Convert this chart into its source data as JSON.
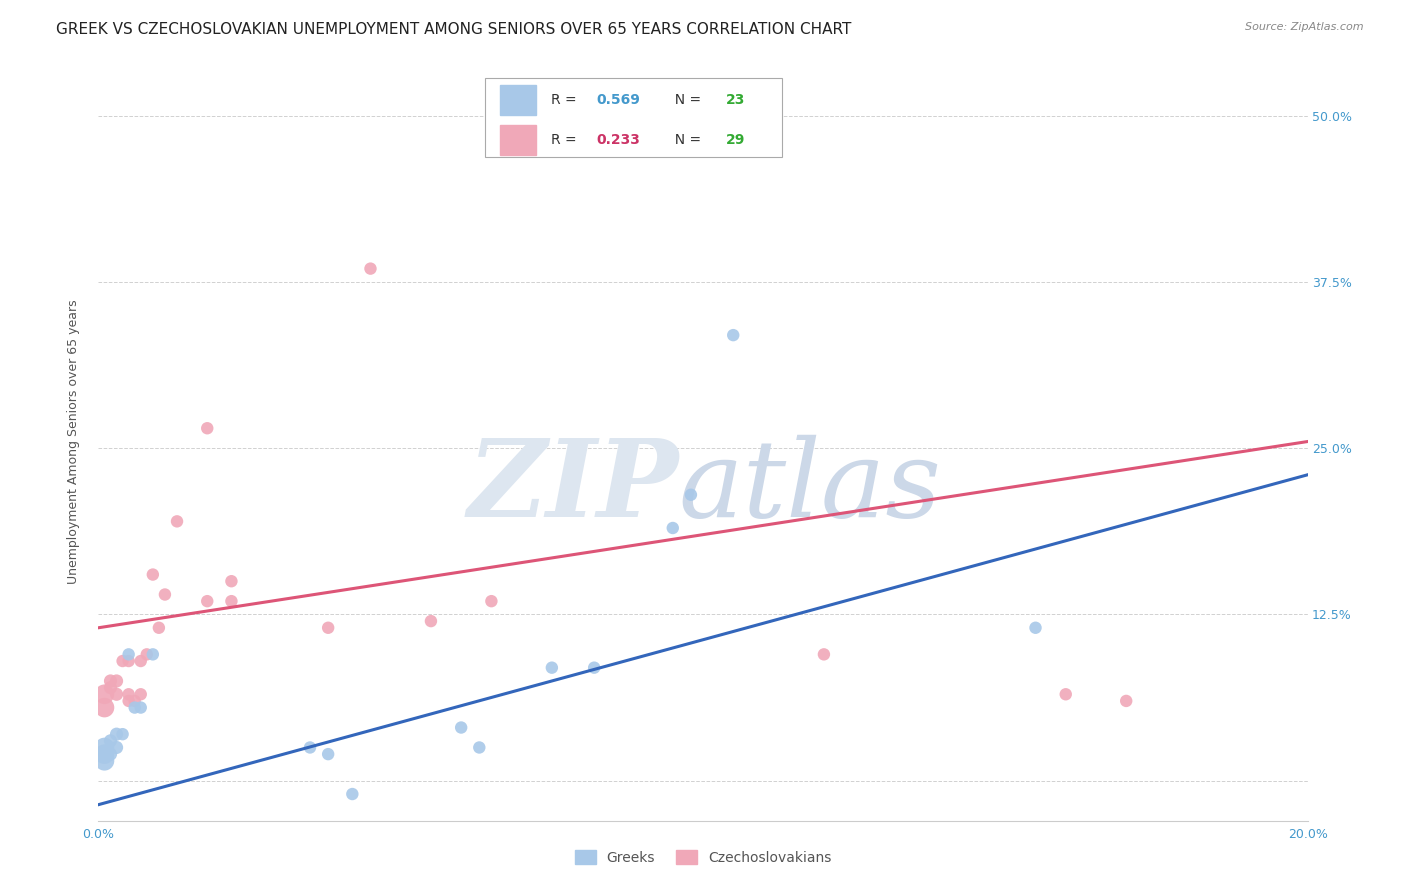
{
  "title": "GREEK VS CZECHOSLOVAKIAN UNEMPLOYMENT AMONG SENIORS OVER 65 YEARS CORRELATION CHART",
  "source": "Source: ZipAtlas.com",
  "ylabel": "Unemployment Among Seniors over 65 years",
  "xlim": [
    0.0,
    0.2
  ],
  "ylim": [
    -0.03,
    0.54
  ],
  "xticks": [
    0.0,
    0.04,
    0.08,
    0.12,
    0.16,
    0.2
  ],
  "xticklabels": [
    "0.0%",
    "",
    "",
    "",
    "",
    "20.0%"
  ],
  "yticks": [
    0.0,
    0.125,
    0.25,
    0.375,
    0.5
  ],
  "yticklabels_right": [
    "",
    "12.5%",
    "25.0%",
    "37.5%",
    "50.0%"
  ],
  "greek_R": 0.569,
  "greek_N": 23,
  "czech_R": 0.233,
  "czech_N": 29,
  "greek_color": "#a8c8e8",
  "greek_line_color": "#3366bb",
  "czech_color": "#f0a8b8",
  "czech_line_color": "#dd5577",
  "greek_x": [
    0.001,
    0.001,
    0.001,
    0.002,
    0.002,
    0.003,
    0.003,
    0.004,
    0.005,
    0.006,
    0.007,
    0.009,
    0.035,
    0.038,
    0.042,
    0.06,
    0.063,
    0.075,
    0.082,
    0.095,
    0.098,
    0.105,
    0.155
  ],
  "greek_y": [
    0.015,
    0.02,
    0.025,
    0.02,
    0.03,
    0.025,
    0.035,
    0.035,
    0.095,
    0.055,
    0.055,
    0.095,
    0.025,
    0.02,
    -0.01,
    0.04,
    0.025,
    0.085,
    0.085,
    0.19,
    0.215,
    0.335,
    0.115
  ],
  "czech_x": [
    0.001,
    0.001,
    0.002,
    0.002,
    0.003,
    0.003,
    0.004,
    0.005,
    0.005,
    0.005,
    0.006,
    0.007,
    0.007,
    0.008,
    0.009,
    0.01,
    0.011,
    0.013,
    0.018,
    0.018,
    0.022,
    0.022,
    0.038,
    0.045,
    0.055,
    0.065,
    0.12,
    0.16,
    0.17
  ],
  "czech_y": [
    0.055,
    0.065,
    0.07,
    0.075,
    0.065,
    0.075,
    0.09,
    0.06,
    0.065,
    0.09,
    0.06,
    0.065,
    0.09,
    0.095,
    0.155,
    0.115,
    0.14,
    0.195,
    0.265,
    0.135,
    0.135,
    0.15,
    0.115,
    0.385,
    0.12,
    0.135,
    0.095,
    0.065,
    0.06
  ],
  "greek_line_x0": 0.0,
  "greek_line_y0": -0.018,
  "greek_line_x1": 0.2,
  "greek_line_y1": 0.23,
  "czech_line_x0": 0.0,
  "czech_line_y0": 0.115,
  "czech_line_x1": 0.2,
  "czech_line_y1": 0.255,
  "background_color": "#ffffff",
  "grid_color": "#cccccc",
  "title_fontsize": 11,
  "axis_label_fontsize": 9,
  "tick_fontsize": 9,
  "legend_R_color_greek": "#4499cc",
  "legend_R_color_czech": "#cc3366",
  "legend_N_color": "#33aa33"
}
